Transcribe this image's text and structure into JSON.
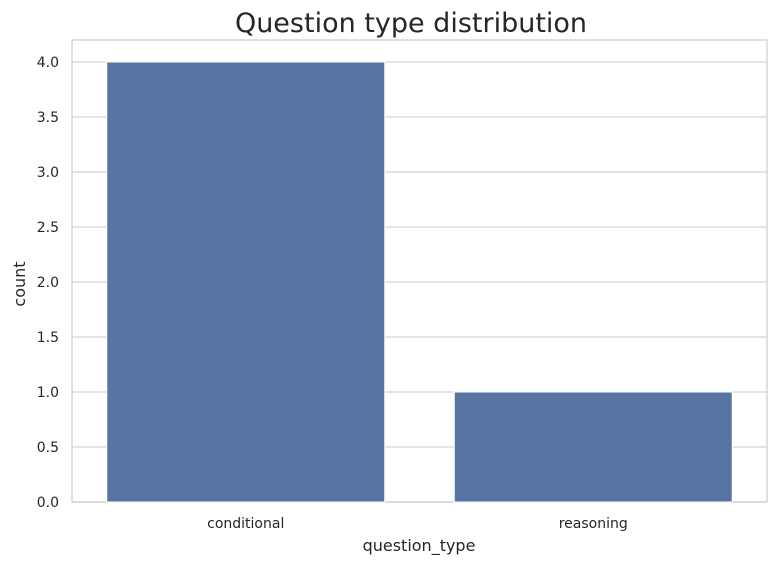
{
  "chart_data": {
    "type": "bar",
    "title": "Question type distribution",
    "xlabel": "question_type",
    "ylabel": "count",
    "categories": [
      "conditional",
      "reasoning"
    ],
    "values": [
      4,
      1
    ],
    "ylim": [
      0,
      4.2
    ],
    "yticks": [
      "0.0",
      "0.5",
      "1.0",
      "1.5",
      "2.0",
      "2.5",
      "3.0",
      "3.5",
      "4.0"
    ],
    "grid": "horizontal",
    "bar_color": "#5874a4",
    "grid_color": "#d4d4d4"
  }
}
